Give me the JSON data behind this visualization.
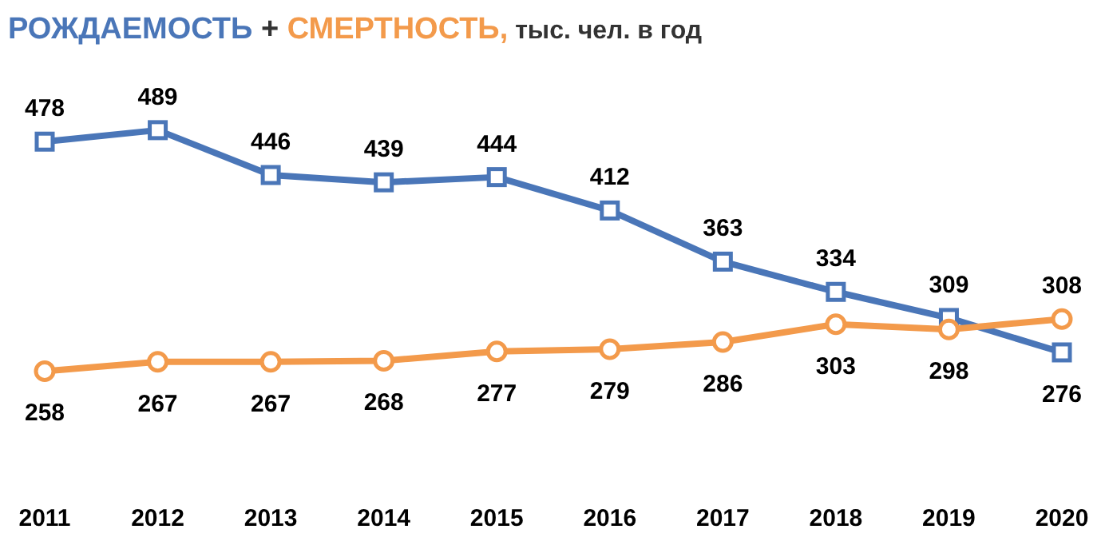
{
  "chart_data": {
    "type": "line",
    "title": "тыс. чел. в год",
    "legend": "top left",
    "annotations": [
      "+"
    ],
    "data_labels": true,
    "categories": [
      "2011",
      "2012",
      "2013",
      "2014",
      "2015",
      "2016",
      "2017",
      "2018",
      "2019",
      "2020"
    ],
    "series": [
      {
        "name": "РОЖДАЕМОСТЬ",
        "color": "#4a76b8",
        "marker": "square",
        "values": [
          478,
          489,
          446,
          439,
          444,
          412,
          363,
          334,
          309,
          276
        ]
      },
      {
        "name": "СМЕРТНОСТЬ,",
        "color": "#f39a4b",
        "marker": "circle",
        "values": [
          258,
          267,
          267,
          268,
          277,
          279,
          286,
          303,
          298,
          308
        ]
      }
    ]
  }
}
